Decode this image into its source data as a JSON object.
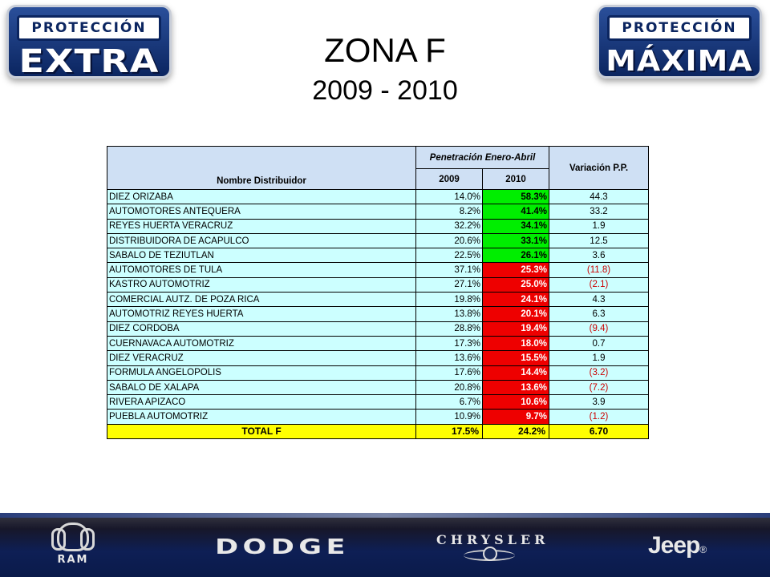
{
  "logos": {
    "left": {
      "top": "PROTECCIÓN",
      "bottom": "EXTRA"
    },
    "right": {
      "top": "PROTECCIÓN",
      "bottom": "MÁXIMA"
    }
  },
  "title": "ZONA F",
  "subtitle": "2009 - 2010",
  "table": {
    "headers": {
      "name": "Nombre Distribuidor",
      "penetration": "Penetración Enero-Abril",
      "variation": "Variación P.P.",
      "year1": "2009",
      "year2": "2010"
    },
    "rows": [
      {
        "name": "DIEZ ORIZABA",
        "y2009": "14.0%",
        "y2010": "58.3%",
        "var": "44.3",
        "trend": "up",
        "neg": false
      },
      {
        "name": "AUTOMOTORES ANTEQUERA",
        "y2009": "8.2%",
        "y2010": "41.4%",
        "var": "33.2",
        "trend": "up",
        "neg": false
      },
      {
        "name": "REYES HUERTA VERACRUZ",
        "y2009": "32.2%",
        "y2010": "34.1%",
        "var": "1.9",
        "trend": "up",
        "neg": false
      },
      {
        "name": "DISTRIBUIDORA DE ACAPULCO",
        "y2009": "20.6%",
        "y2010": "33.1%",
        "var": "12.5",
        "trend": "up",
        "neg": false
      },
      {
        "name": "SABALO DE TEZIUTLAN",
        "y2009": "22.5%",
        "y2010": "26.1%",
        "var": "3.6",
        "trend": "up",
        "neg": false
      },
      {
        "name": "AUTOMOTORES DE TULA",
        "y2009": "37.1%",
        "y2010": "25.3%",
        "var": "(11.8)",
        "trend": "down",
        "neg": true
      },
      {
        "name": "KASTRO AUTOMOTRIZ",
        "y2009": "27.1%",
        "y2010": "25.0%",
        "var": "(2.1)",
        "trend": "down",
        "neg": true
      },
      {
        "name": "COMERCIAL AUTZ. DE POZA RICA",
        "y2009": "19.8%",
        "y2010": "24.1%",
        "var": "4.3",
        "trend": "down",
        "neg": false
      },
      {
        "name": "AUTOMOTRIZ REYES HUERTA",
        "y2009": "13.8%",
        "y2010": "20.1%",
        "var": "6.3",
        "trend": "down",
        "neg": false
      },
      {
        "name": "DIEZ CORDOBA",
        "y2009": "28.8%",
        "y2010": "19.4%",
        "var": "(9.4)",
        "trend": "down",
        "neg": true
      },
      {
        "name": "CUERNAVACA AUTOMOTRIZ",
        "y2009": "17.3%",
        "y2010": "18.0%",
        "var": "0.7",
        "trend": "down",
        "neg": false
      },
      {
        "name": "DIEZ VERACRUZ",
        "y2009": "13.6%",
        "y2010": "15.5%",
        "var": "1.9",
        "trend": "down",
        "neg": false
      },
      {
        "name": "FORMULA ANGELOPOLIS",
        "y2009": "17.6%",
        "y2010": "14.4%",
        "var": "(3.2)",
        "trend": "down",
        "neg": true
      },
      {
        "name": "SABALO DE XALAPA",
        "y2009": "20.8%",
        "y2010": "13.6%",
        "var": "(7.2)",
        "trend": "down",
        "neg": true
      },
      {
        "name": "RIVERA APIZACO",
        "y2009": "6.7%",
        "y2010": "10.6%",
        "var": "3.9",
        "trend": "down",
        "neg": false
      },
      {
        "name": "PUEBLA AUTOMOTRIZ",
        "y2009": "10.9%",
        "y2010": "9.7%",
        "var": "(1.2)",
        "trend": "down",
        "neg": true
      }
    ],
    "total": {
      "label": "TOTAL      F",
      "y2009": "17.5%",
      "y2010": "24.2%",
      "var": "6.70"
    }
  },
  "colors": {
    "above_target": "#00ee00",
    "below_target": "#ee0000",
    "row_bg": "#ccffff",
    "header_bg": "#cfe0f4",
    "total_bg": "#ffff00",
    "negative_text": "#cc0000"
  },
  "footer": {
    "brands": [
      {
        "name": "RAM",
        "icon": "ram-head-icon"
      },
      {
        "name": "DODGE",
        "icon": "dodge-wordmark"
      },
      {
        "name": "CHRYSLER",
        "icon": "chrysler-wings-icon"
      },
      {
        "name": "Jeep",
        "icon": "jeep-wordmark"
      }
    ]
  }
}
